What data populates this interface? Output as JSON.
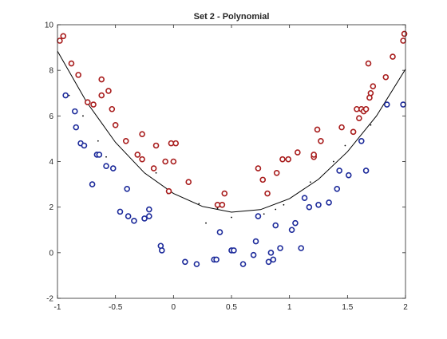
{
  "chart_data": {
    "type": "scatter",
    "title": "Set 2 - Polynomial",
    "xlabel": "",
    "ylabel": "",
    "xlim": [
      -1,
      2
    ],
    "ylim": [
      -2,
      10
    ],
    "xticks": [
      -1,
      -0.5,
      0,
      0.5,
      1,
      1.5,
      2
    ],
    "xtick_labels": [
      "-1",
      "-0.5",
      "0",
      "0.5",
      "1",
      "1.5",
      "2"
    ],
    "yticks": [
      -2,
      0,
      2,
      4,
      6,
      8,
      10
    ],
    "ytick_labels": [
      "-2",
      "0",
      "2",
      "4",
      "6",
      "8",
      "10"
    ],
    "grid": false,
    "box": true,
    "colors": {
      "positive": "#a81c1c",
      "negative": "#1c2a9a",
      "boundary": "#000000",
      "axis": "#262626"
    },
    "series": [
      {
        "marker": "circle",
        "values": [
          [
            -0.98,
            9.3
          ],
          [
            -0.95,
            9.5
          ],
          [
            -0.88,
            8.3
          ],
          [
            -0.82,
            7.8
          ],
          [
            -0.74,
            6.6
          ],
          [
            -0.69,
            6.5
          ],
          [
            -0.62,
            7.6
          ],
          [
            -0.62,
            6.9
          ],
          [
            -0.56,
            7.1
          ],
          [
            -0.53,
            6.3
          ],
          [
            -0.5,
            5.6
          ],
          [
            -0.41,
            4.9
          ],
          [
            -0.31,
            4.3
          ],
          [
            -0.27,
            5.2
          ],
          [
            -0.27,
            4.1
          ],
          [
            -0.17,
            3.7
          ],
          [
            -0.15,
            4.7
          ],
          [
            -0.07,
            4.0
          ],
          [
            -0.04,
            2.7
          ],
          [
            -0.02,
            4.8
          ],
          [
            0.0,
            4.0
          ],
          [
            0.02,
            4.8
          ],
          [
            0.13,
            3.1
          ],
          [
            0.38,
            2.1
          ],
          [
            0.42,
            2.1
          ],
          [
            0.44,
            2.6
          ],
          [
            0.73,
            3.7
          ],
          [
            0.77,
            3.2
          ],
          [
            0.81,
            2.6
          ],
          [
            0.89,
            3.5
          ],
          [
            0.94,
            4.1
          ],
          [
            0.99,
            4.1
          ],
          [
            1.07,
            4.4
          ],
          [
            1.21,
            4.2
          ],
          [
            1.21,
            4.3
          ],
          [
            1.24,
            5.4
          ],
          [
            1.27,
            4.9
          ],
          [
            1.45,
            5.5
          ],
          [
            1.55,
            5.3
          ],
          [
            1.58,
            6.3
          ],
          [
            1.6,
            5.9
          ],
          [
            1.62,
            6.3
          ],
          [
            1.64,
            6.2
          ],
          [
            1.66,
            6.3
          ],
          [
            1.68,
            8.3
          ],
          [
            1.69,
            6.8
          ],
          [
            1.7,
            7.0
          ],
          [
            1.72,
            7.3
          ],
          [
            1.83,
            7.7
          ],
          [
            1.89,
            8.6
          ],
          [
            1.98,
            9.3
          ],
          [
            1.99,
            9.6
          ]
        ]
      },
      {
        "marker": "circle",
        "values": [
          [
            -0.93,
            6.9
          ],
          [
            -0.85,
            6.2
          ],
          [
            -0.84,
            5.5
          ],
          [
            -0.8,
            4.8
          ],
          [
            -0.77,
            4.7
          ],
          [
            -0.7,
            3.0
          ],
          [
            -0.66,
            4.3
          ],
          [
            -0.64,
            4.3
          ],
          [
            -0.58,
            3.8
          ],
          [
            -0.52,
            3.7
          ],
          [
            -0.46,
            1.8
          ],
          [
            -0.4,
            2.8
          ],
          [
            -0.39,
            1.6
          ],
          [
            -0.34,
            1.4
          ],
          [
            -0.25,
            1.5
          ],
          [
            -0.21,
            1.6
          ],
          [
            -0.21,
            1.9
          ],
          [
            -0.11,
            0.3
          ],
          [
            -0.1,
            0.1
          ],
          [
            0.1,
            -0.4
          ],
          [
            0.2,
            -0.5
          ],
          [
            0.35,
            -0.3
          ],
          [
            0.37,
            -0.3
          ],
          [
            0.4,
            0.9
          ],
          [
            0.5,
            0.1
          ],
          [
            0.52,
            0.1
          ],
          [
            0.6,
            -0.5
          ],
          [
            0.69,
            -0.1
          ],
          [
            0.71,
            0.5
          ],
          [
            0.73,
            1.6
          ],
          [
            0.82,
            -0.4
          ],
          [
            0.84,
            0.0
          ],
          [
            0.86,
            -0.3
          ],
          [
            0.88,
            1.2
          ],
          [
            0.92,
            0.2
          ],
          [
            1.02,
            1.0
          ],
          [
            1.05,
            1.3
          ],
          [
            1.1,
            0.2
          ],
          [
            1.13,
            2.4
          ],
          [
            1.17,
            2.0
          ],
          [
            1.25,
            2.1
          ],
          [
            1.34,
            2.2
          ],
          [
            1.41,
            2.8
          ],
          [
            1.43,
            3.6
          ],
          [
            1.51,
            3.4
          ],
          [
            1.62,
            4.9
          ],
          [
            1.66,
            3.6
          ],
          [
            1.84,
            6.5
          ],
          [
            1.98,
            6.5
          ]
        ]
      }
    ],
    "decision_boundary": {
      "type": "line",
      "x": [
        -1.0,
        -0.75,
        -0.5,
        -0.25,
        0.0,
        0.25,
        0.5,
        0.75,
        1.0,
        1.25,
        1.5,
        1.75,
        2.0
      ],
      "y": [
        8.84,
        6.62,
        4.84,
        3.5,
        2.6,
        2.03,
        1.78,
        1.89,
        2.37,
        3.22,
        4.43,
        6.0,
        8.05
      ]
    },
    "small_points": [
      [
        -0.9,
        6.9
      ],
      [
        -0.78,
        6.0
      ],
      [
        -0.65,
        4.9
      ],
      [
        -0.58,
        4.2
      ],
      [
        -0.15,
        3.5
      ],
      [
        -0.05,
        2.6
      ],
      [
        0.22,
        2.15
      ],
      [
        0.28,
        1.3
      ],
      [
        0.38,
        1.95
      ],
      [
        0.5,
        1.55
      ],
      [
        0.78,
        1.7
      ],
      [
        0.88,
        1.9
      ],
      [
        0.95,
        2.1
      ],
      [
        1.18,
        3.1
      ],
      [
        1.38,
        4.0
      ],
      [
        1.48,
        4.7
      ],
      [
        1.7,
        5.6
      ]
    ]
  }
}
